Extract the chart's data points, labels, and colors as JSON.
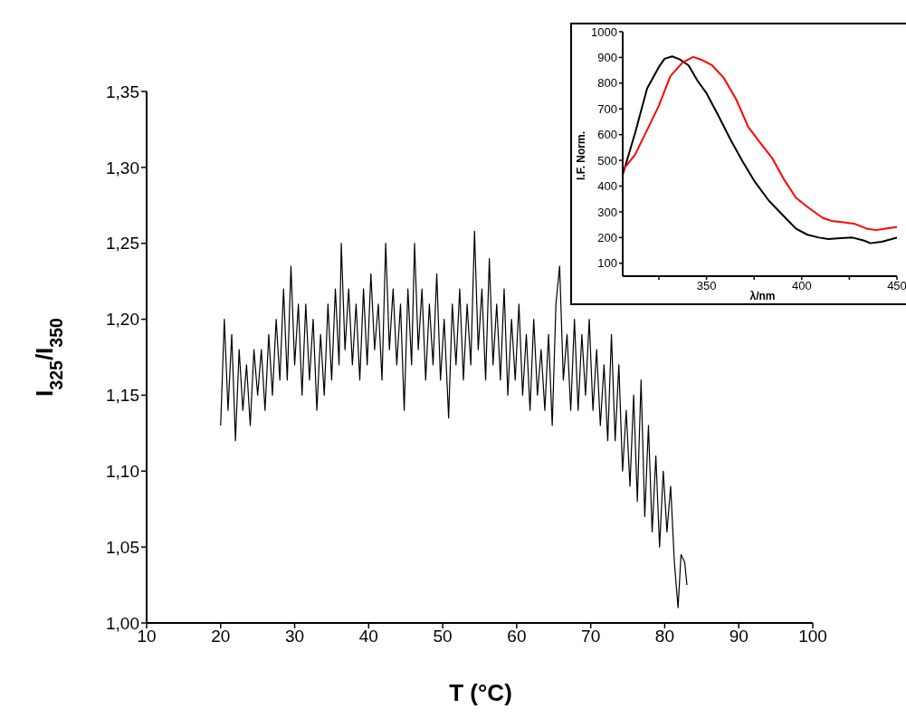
{
  "chart_data": [
    {
      "type": "line",
      "xlabel": "T (°C)",
      "ylabel": "I$_{325}$/I$_{350}$",
      "grid": false,
      "legend": false,
      "marker": "none",
      "line_style": "solid",
      "xlim": [
        10,
        100
      ],
      "xticks": [
        10,
        20,
        30,
        40,
        50,
        60,
        70,
        80,
        90,
        100
      ],
      "ylim": [
        1,
        1.35
      ],
      "yticks": [
        {
          "value": 1,
          "label": "1,00"
        },
        {
          "value": 1.05,
          "label": "1,05"
        },
        {
          "value": 1.1,
          "label": "1,10"
        },
        {
          "value": 1.15,
          "label": "1,15"
        },
        {
          "value": 1.2,
          "label": "1,20"
        },
        {
          "value": 1.25,
          "label": "1,25"
        },
        {
          "value": 1.3,
          "label": "1,30"
        },
        {
          "value": 1.35,
          "label": "1,35"
        }
      ],
      "x": [
        20.0,
        20.5,
        21.0,
        21.5,
        22.0,
        22.5,
        23.0,
        23.5,
        24.0,
        24.5,
        25.0,
        25.5,
        26.0,
        26.5,
        27.0,
        27.5,
        28.0,
        28.5,
        29.0,
        29.5,
        30.0,
        30.5,
        31.0,
        31.5,
        32.0,
        32.5,
        33.0,
        33.5,
        34.0,
        34.5,
        35.0,
        35.5,
        36.0,
        36.3,
        36.8,
        37.3,
        37.8,
        38.3,
        38.8,
        39.3,
        39.8,
        40.3,
        40.8,
        41.3,
        41.8,
        42.3,
        42.8,
        43.3,
        43.8,
        44.3,
        44.8,
        45.3,
        45.8,
        46.2,
        46.7,
        47.2,
        47.7,
        48.2,
        48.7,
        49.2,
        49.7,
        50.2,
        50.8,
        51.3,
        51.8,
        52.3,
        52.8,
        53.3,
        53.8,
        54.3,
        54.8,
        55.3,
        55.8,
        56.3,
        56.8,
        57.3,
        57.8,
        58.3,
        58.8,
        59.3,
        59.8,
        60.3,
        60.8,
        61.3,
        61.8,
        62.3,
        62.8,
        63.3,
        63.8,
        64.3,
        64.8,
        65.3,
        65.8,
        66.3,
        66.8,
        67.3,
        67.8,
        68.3,
        68.8,
        69.3,
        69.8,
        70.3,
        70.8,
        71.3,
        71.8,
        72.3,
        72.8,
        73.3,
        73.8,
        74.3,
        74.8,
        75.3,
        75.8,
        76.3,
        76.8,
        77.3,
        77.8,
        78.3,
        78.8,
        79.3,
        79.8,
        80.3,
        80.8,
        81.3,
        81.8,
        82.2,
        82.7,
        83.0
      ],
      "series": [
        {
          "color": "#000000",
          "values": [
            1.13,
            1.2,
            1.14,
            1.19,
            1.12,
            1.18,
            1.14,
            1.17,
            1.13,
            1.18,
            1.15,
            1.18,
            1.14,
            1.19,
            1.15,
            1.2,
            1.16,
            1.22,
            1.16,
            1.235,
            1.17,
            1.21,
            1.15,
            1.21,
            1.16,
            1.2,
            1.14,
            1.19,
            1.15,
            1.21,
            1.16,
            1.22,
            1.17,
            1.25,
            1.18,
            1.22,
            1.17,
            1.21,
            1.16,
            1.22,
            1.17,
            1.23,
            1.18,
            1.21,
            1.16,
            1.25,
            1.18,
            1.22,
            1.17,
            1.21,
            1.14,
            1.22,
            1.17,
            1.25,
            1.18,
            1.22,
            1.16,
            1.21,
            1.17,
            1.23,
            1.16,
            1.2,
            1.135,
            1.21,
            1.17,
            1.22,
            1.16,
            1.21,
            1.17,
            1.258,
            1.18,
            1.22,
            1.16,
            1.24,
            1.17,
            1.21,
            1.16,
            1.22,
            1.15,
            1.2,
            1.16,
            1.21,
            1.15,
            1.19,
            1.14,
            1.2,
            1.15,
            1.18,
            1.14,
            1.19,
            1.13,
            1.21,
            1.235,
            1.16,
            1.19,
            1.14,
            1.2,
            1.14,
            1.19,
            1.15,
            1.2,
            1.14,
            1.18,
            1.13,
            1.17,
            1.12,
            1.19,
            1.12,
            1.17,
            1.1,
            1.14,
            1.09,
            1.15,
            1.08,
            1.16,
            1.07,
            1.13,
            1.06,
            1.11,
            1.05,
            1.1,
            1.06,
            1.09,
            1.04,
            1.01,
            1.045,
            1.04,
            1.025
          ]
        }
      ]
    },
    {
      "type": "line",
      "xlabel": "λ/nm",
      "ylabel": "I.F. Norm.",
      "grid": false,
      "legend": false,
      "marker": "none",
      "line_style": "solid",
      "xlim": [
        306,
        450
      ],
      "xticks": [
        {
          "value": 325,
          "label": null
        },
        350,
        {
          "value": 375,
          "label": null
        },
        400,
        {
          "value": 425,
          "label": null
        },
        450
      ],
      "ylim": [
        50,
        1000
      ],
      "yticks": [
        100,
        200,
        300,
        400,
        500,
        600,
        700,
        800,
        900,
        1000
      ],
      "series": [
        {
          "color": "#000000",
          "x": [
            306,
            312.5,
            318.8,
            325,
            328,
            332,
            336,
            340.6,
            345.3,
            350,
            356,
            362.5,
            368.8,
            375,
            382.8,
            390.6,
            396.9,
            403,
            409,
            414,
            418.8,
            426.6,
            432.8,
            436,
            442,
            450
          ],
          "values": [
            444,
            606,
            779,
            863,
            895,
            904,
            892,
            869,
            809,
            761,
            677,
            582,
            498,
            421,
            343,
            283,
            235,
            211,
            200,
            194,
            197,
            200,
            188,
            178,
            184,
            200
          ]
        },
        {
          "color": "#ff0000",
          "x": [
            306,
            312.5,
            318.8,
            325,
            331,
            337.5,
            343,
            347,
            353,
            359,
            365.6,
            371.9,
            378,
            384.4,
            390.6,
            396.9,
            403,
            410.9,
            415.6,
            421.9,
            428,
            434,
            439,
            443.8,
            450
          ],
          "values": [
            462,
            522,
            618,
            713,
            827,
            881,
            902,
            892,
            869,
            821,
            737,
            630,
            570,
            510,
            427,
            355,
            319,
            277,
            265,
            259,
            253,
            235,
            229,
            235,
            241
          ]
        }
      ]
    }
  ]
}
